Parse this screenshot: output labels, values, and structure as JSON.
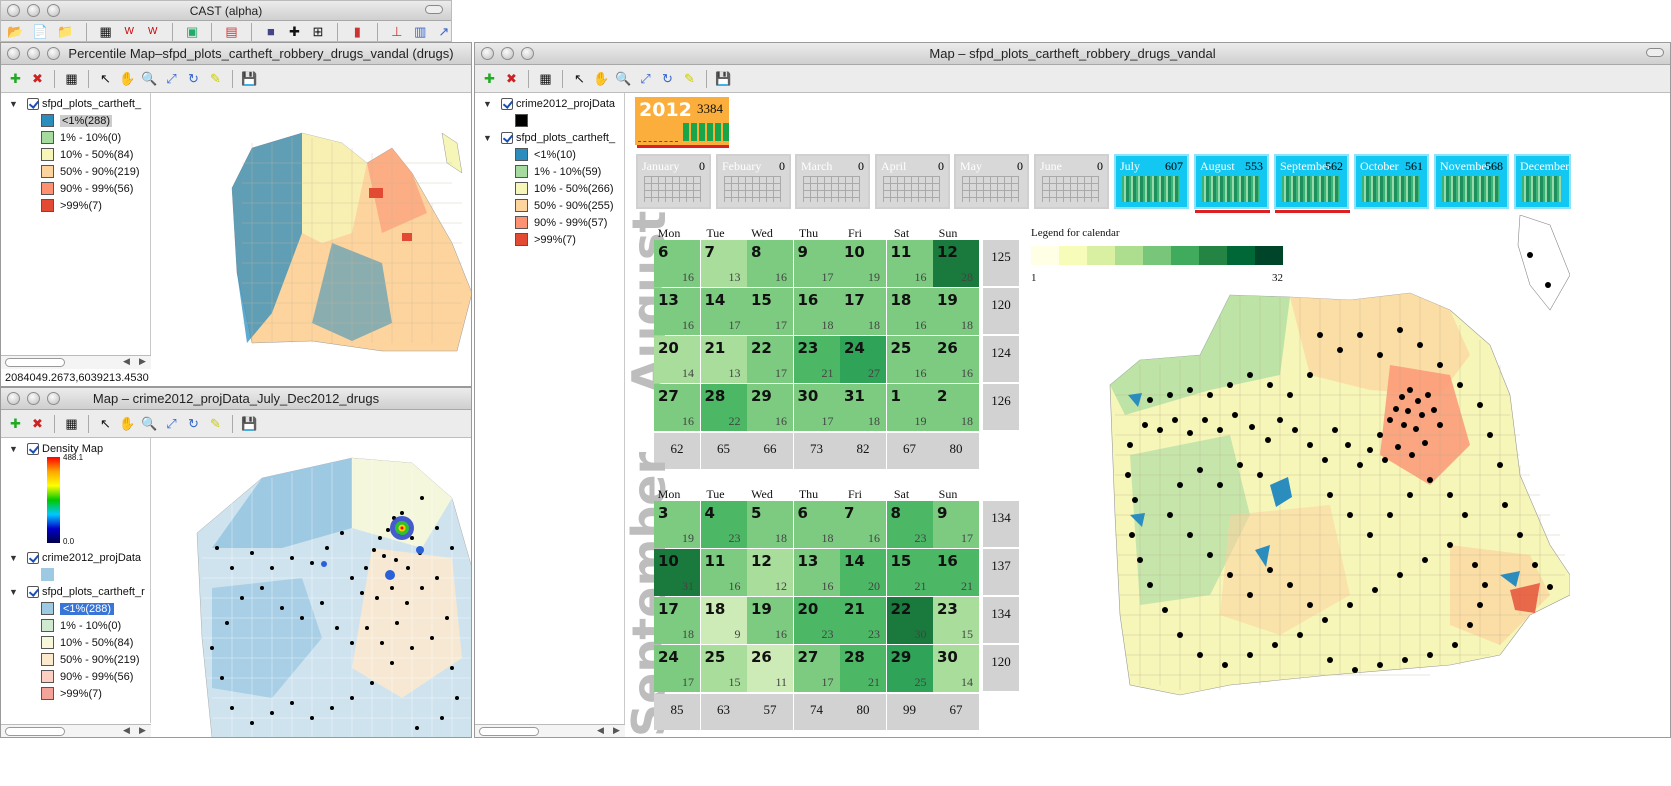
{
  "app_window": {
    "title": "CAST (alpha)"
  },
  "percentile_window": {
    "title": "Percentile Map–sfpd_plots_cartheft_robbery_drugs_vandal (drugs)",
    "layer": "sfpd_plots_cartheft_",
    "legend": [
      "<1%(288)",
      "1% - 10%(0)",
      "10% - 50%(84)",
      "50% - 90%(219)",
      "90% - 99%(56)",
      ">99%(7)"
    ],
    "coords": "2084049.2673,6039213.4530"
  },
  "density_window": {
    "title": "Map – crime2012_projData_July_Dec2012_drugs",
    "layer1": "Density Map",
    "max": "488.1",
    "min": "0.0",
    "layer2": "crime2012_projData",
    "layer3": "sfpd_plots_cartheft_r",
    "legend": [
      "<1%(288)",
      "1% - 10%(0)",
      "10% - 50%(84)",
      "50% - 90%(219)",
      "90% - 99%(56)",
      ">99%(7)"
    ]
  },
  "main_window": {
    "title": "Map – sfpd_plots_cartheft_robbery_drugs_vandal",
    "layer1": "crime2012_projData",
    "layer2": "sfpd_plots_cartheft_",
    "legend": [
      "<1%(10)",
      "1% - 10%(59)",
      "10% - 50%(266)",
      "50% - 90%(255)",
      "90% - 99%(57)",
      ">99%(7)"
    ]
  },
  "year": {
    "label": "2012",
    "count": "3384"
  },
  "months": [
    {
      "name": "January",
      "count": "0",
      "active": false
    },
    {
      "name": "Febuary",
      "count": "0",
      "active": false
    },
    {
      "name": "March",
      "count": "0",
      "active": false
    },
    {
      "name": "April",
      "count": "0",
      "active": false
    },
    {
      "name": "May",
      "count": "0",
      "active": false
    },
    {
      "name": "June",
      "count": "0",
      "active": false
    },
    {
      "name": "July",
      "count": "607",
      "active": true
    },
    {
      "name": "August",
      "count": "553",
      "active": true
    },
    {
      "name": "September",
      "count": "562",
      "active": true
    },
    {
      "name": "October",
      "count": "561",
      "active": true
    },
    {
      "name": "November",
      "count": "568",
      "active": true
    },
    {
      "name": "December",
      "count": "",
      "active": true
    }
  ],
  "weekdays": [
    "Mon",
    "Tue",
    "Wed",
    "Thu",
    "Fri",
    "Sat",
    "Sun"
  ],
  "legend_title": "Legend for calendar",
  "legend_min": "1",
  "legend_max": "32",
  "legend_colors": [
    "#ffffe5",
    "#f7fcb9",
    "#d9f0a3",
    "#addd8e",
    "#78c679",
    "#41ab5d",
    "#238443",
    "#006837",
    "#004529"
  ],
  "august": {
    "label": "August",
    "weeks": [
      {
        "days": [
          [
            "6",
            "16"
          ],
          [
            "7",
            "13"
          ],
          [
            "8",
            "16"
          ],
          [
            "9",
            "17"
          ],
          [
            "10",
            "19"
          ],
          [
            "11",
            "16"
          ],
          [
            "12",
            "28"
          ]
        ],
        "total": "125"
      },
      {
        "days": [
          [
            "13",
            "16"
          ],
          [
            "14",
            "17"
          ],
          [
            "15",
            "17"
          ],
          [
            "16",
            "18"
          ],
          [
            "17",
            "18"
          ],
          [
            "18",
            "16"
          ],
          [
            "19",
            "18"
          ]
        ],
        "total": "120"
      },
      {
        "days": [
          [
            "20",
            "14"
          ],
          [
            "21",
            "13"
          ],
          [
            "22",
            "17"
          ],
          [
            "23",
            "21"
          ],
          [
            "24",
            "27"
          ],
          [
            "25",
            "16"
          ],
          [
            "26",
            "16"
          ]
        ],
        "total": "124"
      },
      {
        "days": [
          [
            "27",
            "16"
          ],
          [
            "28",
            "22"
          ],
          [
            "29",
            "16"
          ],
          [
            "30",
            "17"
          ],
          [
            "31",
            "18"
          ],
          [
            "1",
            "19"
          ],
          [
            "2",
            "18"
          ]
        ],
        "total": "126"
      }
    ],
    "col_totals": [
      "62",
      "65",
      "66",
      "73",
      "82",
      "67",
      "80"
    ]
  },
  "september": {
    "label": "September",
    "weeks": [
      {
        "days": [
          [
            "3",
            "19"
          ],
          [
            "4",
            "23"
          ],
          [
            "5",
            "18"
          ],
          [
            "6",
            "18"
          ],
          [
            "7",
            "16"
          ],
          [
            "8",
            "23"
          ],
          [
            "9",
            "17"
          ]
        ],
        "total": "134"
      },
      {
        "days": [
          [
            "10",
            "31"
          ],
          [
            "11",
            "16"
          ],
          [
            "12",
            "12"
          ],
          [
            "13",
            "16"
          ],
          [
            "14",
            "20"
          ],
          [
            "15",
            "21"
          ],
          [
            "16",
            "21"
          ]
        ],
        "total": "137"
      },
      {
        "days": [
          [
            "17",
            "18"
          ],
          [
            "18",
            "9"
          ],
          [
            "19",
            "16"
          ],
          [
            "20",
            "23"
          ],
          [
            "21",
            "23"
          ],
          [
            "22",
            "30"
          ],
          [
            "23",
            "15"
          ]
        ],
        "total": "134"
      },
      {
        "days": [
          [
            "24",
            "17"
          ],
          [
            "25",
            "15"
          ],
          [
            "26",
            "11"
          ],
          [
            "27",
            "17"
          ],
          [
            "28",
            "21"
          ],
          [
            "29",
            "25"
          ],
          [
            "30",
            "14"
          ]
        ],
        "total": "120"
      }
    ],
    "col_totals": [
      "85",
      "63",
      "57",
      "74",
      "80",
      "99",
      "67"
    ]
  }
}
